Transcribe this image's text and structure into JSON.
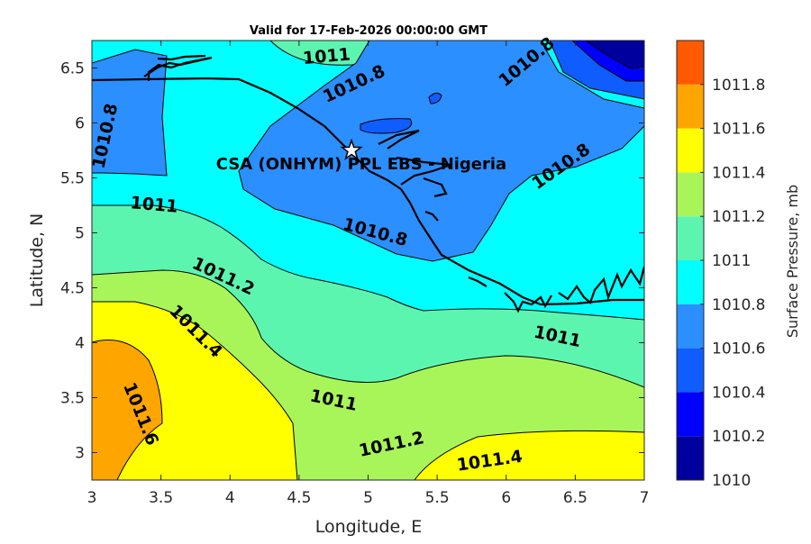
{
  "title": "Valid for 17-Feb-2026 00:00:00 GMT",
  "xlabel": "Longitude, E",
  "ylabel": "Latitude, N",
  "site_label": "CSA (ONHYM) PPL EBS - Nigeria",
  "colorbar_label": "Surface Pressure, mb",
  "x_ticks": [
    "3",
    "3.5",
    "4",
    "4.5",
    "5",
    "5.5",
    "6",
    "6.5",
    "7"
  ],
  "y_ticks": [
    "6.5",
    "6",
    "5.5",
    "5",
    "4.5",
    "4",
    "3.5",
    "3"
  ],
  "colorbar_ticks": [
    "1011.8",
    "1011.6",
    "1011.4",
    "1011.2",
    "1011",
    "1010.8",
    "1010.6",
    "1010.4",
    "1010.2",
    "1010"
  ],
  "colors": {
    "1010.0": "#00009f",
    "1010.2": "#0000ff",
    "1010.4": "#0f5cff",
    "1010.6": "#2b8fff",
    "1010.8": "#00ffff",
    "1011.0": "#5cf5b0",
    "1011.2": "#a8f55a",
    "1011.4": "#ffff00",
    "1011.6": "#ffa500",
    "1011.8": "#ff5a00"
  },
  "chart_data": {
    "type": "contour map",
    "title": "Valid for 17-Feb-2026 00:00:00 GMT",
    "xlabel": "Longitude, E",
    "ylabel": "Latitude, N",
    "xlim": [
      3,
      7
    ],
    "ylim": [
      2.75,
      6.75
    ],
    "colorbar_range": [
      1010,
      1012
    ],
    "contour_levels": [
      1010.0,
      1010.2,
      1010.4,
      1010.6,
      1010.8,
      1011.0,
      1011.2,
      1011.4,
      1011.6,
      1011.8
    ],
    "site": {
      "lon": 4.88,
      "lat": 5.75,
      "label": "CSA (ONHYM) PPL EBS - Nigeria"
    },
    "contour_labels": [
      {
        "text": "1011",
        "lon": 3.45,
        "lat": 5.25,
        "rot": 5
      },
      {
        "text": "1011",
        "lon": 4.7,
        "lat": 6.6,
        "rot": -5
      },
      {
        "text": "1010.8",
        "lon": 3.1,
        "lat": 5.88,
        "rot": -78
      },
      {
        "text": "1010.8",
        "lon": 4.9,
        "lat": 6.35,
        "rot": -25
      },
      {
        "text": "1010.8",
        "lon": 6.15,
        "lat": 6.55,
        "rot": -40
      },
      {
        "text": "1010.8",
        "lon": 6.4,
        "lat": 5.6,
        "rot": -35
      },
      {
        "text": "1010.8",
        "lon": 5.05,
        "lat": 5.0,
        "rot": 15
      },
      {
        "text": "1011.2",
        "lon": 3.95,
        "lat": 4.6,
        "rot": 25
      },
      {
        "text": "1011.4",
        "lon": 3.75,
        "lat": 4.1,
        "rot": 45
      },
      {
        "text": "1011.6",
        "lon": 3.35,
        "lat": 3.35,
        "rot": 68
      },
      {
        "text": "1011",
        "lon": 4.75,
        "lat": 3.47,
        "rot": 12
      },
      {
        "text": "1011",
        "lon": 6.37,
        "lat": 4.05,
        "rot": 12
      },
      {
        "text": "1011.2",
        "lon": 5.17,
        "lat": 3.07,
        "rot": -12
      },
      {
        "text": "1011.4",
        "lon": 5.88,
        "lat": 2.92,
        "rot": -8
      }
    ]
  }
}
